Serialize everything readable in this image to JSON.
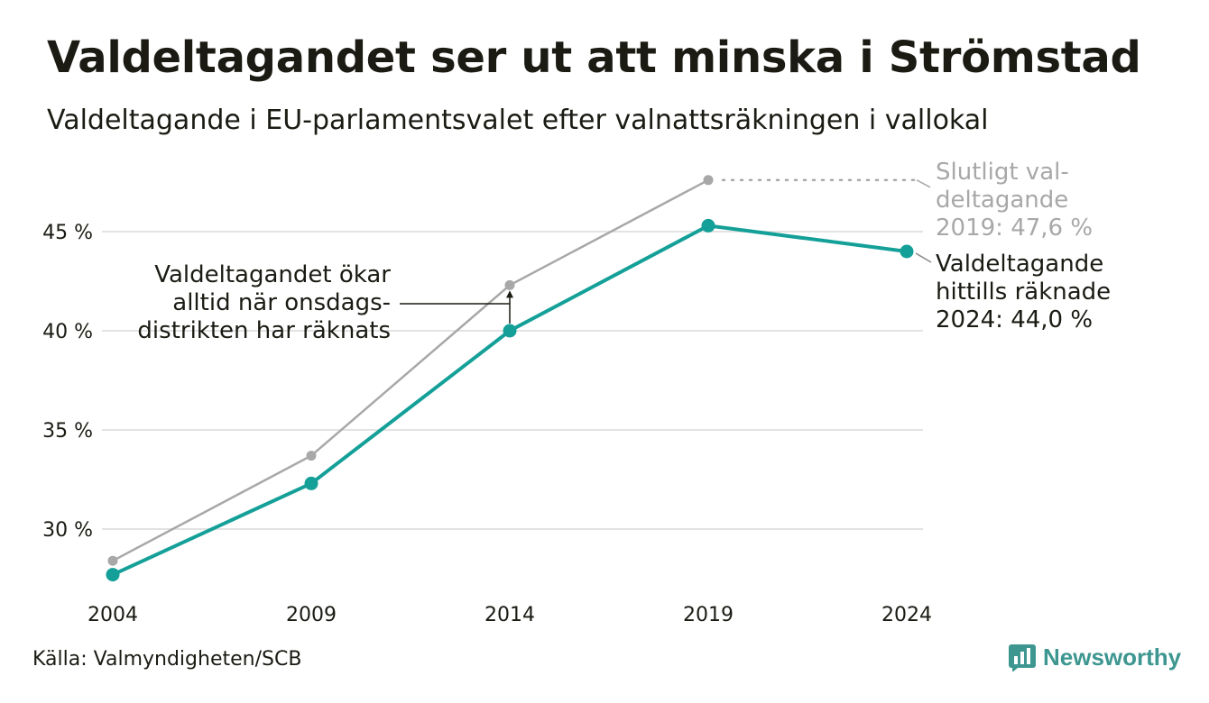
{
  "title": "Valdeltagandet ser ut att minska i Strömstad",
  "subtitle": "Valdeltagande i EU-parlamentsvalet efter valnattsräkningen i vallokal",
  "source": "Källa: Valmyndigheten/SCB",
  "brand": {
    "name": "Newsworthy",
    "icon": "newsworthy-logo-icon"
  },
  "colors": {
    "valnatt": "#14a098",
    "slutligt": "#a8a8a8",
    "grid": "#e3e3e3",
    "text": "#1b1b14"
  },
  "chart_data": {
    "type": "line",
    "x": [
      "2004",
      "2009",
      "2014",
      "2019",
      "2024"
    ],
    "y_ticks": [
      "30 %",
      "35 %",
      "40 %",
      "45 %"
    ],
    "ylim": [
      26.5,
      48.5
    ],
    "grid": true,
    "series": [
      {
        "name": "Valdeltagande hittills räknade",
        "values": [
          27.7,
          32.3,
          40.0,
          45.3,
          44.0
        ]
      },
      {
        "name": "Slutligt valdeltagande",
        "values": [
          28.4,
          33.7,
          42.3,
          47.6,
          null
        ]
      }
    ],
    "annotations": {
      "slutligt": [
        "Slutligt val-",
        "deltagande",
        "2019: 47,6 %"
      ],
      "hittills": [
        "Valdeltagande",
        "hittills räknade",
        "2024: 44,0 %"
      ],
      "onsdag": [
        "Valdeltagandet ökar",
        "alltid när onsdags-",
        "distrikten har räknats"
      ]
    }
  }
}
